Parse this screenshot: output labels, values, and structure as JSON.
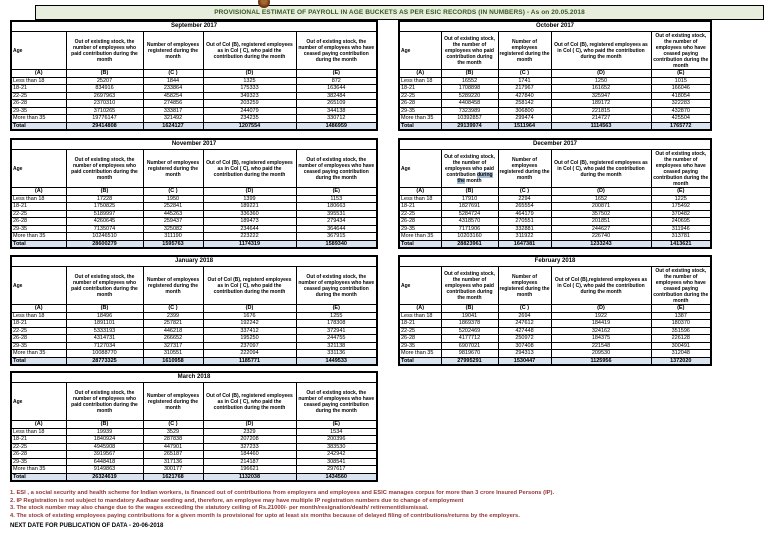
{
  "title": "PROVISIONAL ESTIMATE OF PAYROLL IN AGE BUCKETS AS PER ESIC RECORDS (IN NUMBERS) - As on 20.05.2018",
  "colors": {
    "title_bg": "#e7eedd",
    "title_text": "#38571f",
    "total_row_bg": "#dae3f0",
    "footnote_text": "#943634",
    "highlight_bg": "#a8bfd8",
    "border": "#000000"
  },
  "column_letters": [
    "(A)",
    "(B)",
    "(C )",
    "(D)",
    "(E)"
  ],
  "tables": [
    {
      "month": "September 2017",
      "variant": "wide",
      "headers": [
        "Age",
        "Out of existing stock, the number of employees who paid contribution during the month",
        "Number of employees registered during the month",
        "Out of Col (B), registered employees as in Col ( C), who paid the contribution during the month",
        "Out of existing stock, the number of employees  who have ceased paying contribution during the month"
      ],
      "rows": [
        [
          "Less than 18",
          "25207",
          "1844",
          "1325",
          "872"
        ],
        [
          "18-21",
          "834916",
          "233864",
          "175333",
          "163644"
        ],
        [
          "22-25",
          "2697963",
          "458254",
          "349323",
          "382484"
        ],
        [
          "26-28",
          "2370310",
          "274856",
          "203259",
          "265109"
        ],
        [
          "29-35",
          "3710265",
          "333817",
          "244079",
          "344138"
        ],
        [
          "More than 35",
          "19776147",
          "321492",
          "234235",
          "330712"
        ],
        [
          "Total",
          "29414808",
          "1624127",
          "1207554",
          "1486959"
        ]
      ]
    },
    {
      "month": "October 2017",
      "variant": "narrow",
      "headers": [
        "Age",
        "Out of existing stock, the number of employees who paid contribution during the month",
        "Number of employees registered during the month",
        "Out of Col (B),  registered employees as in Col ( C), who paid the contribution during the month",
        "Out of existing stock, the number of employees  who have ceased paying contribution during the month"
      ],
      "rows": [
        [
          "Less than 18",
          "16552",
          "1741",
          "1250",
          "1015"
        ],
        [
          "18-21",
          "1708898",
          "217967",
          "161652",
          "166046"
        ],
        [
          "22-25",
          "5289220",
          "427840",
          "325947",
          "418054"
        ],
        [
          "26-28",
          "4408458",
          "258142",
          "189172",
          "322283"
        ],
        [
          "29-35",
          "7323989",
          "306800",
          "221815",
          "432870"
        ],
        [
          "More than 35",
          "10392857",
          "299474",
          "214727",
          "425504"
        ],
        [
          "Total",
          "29139974",
          "1511964",
          "1114563",
          "1765772"
        ]
      ]
    },
    {
      "month": "November 2017",
      "variant": "wide",
      "headers": [
        "Age",
        "Out of existing stock, the number of employees who paid contribution during the month",
        "Number of employees registered during the month",
        "Out of Col (B), registered employees as in Col ( C), who paid the contribution during the month",
        "Out of existing stock, the number of employees  who have ceased paying contribution during the month"
      ],
      "rows": [
        [
          "Less than 18",
          "17228",
          "1950",
          "1399",
          "1153"
        ],
        [
          "18-21",
          "1750825",
          "252841",
          "189221",
          "180663"
        ],
        [
          "22-25",
          "5189997",
          "445263",
          "336360",
          "395531"
        ],
        [
          "26-28",
          "4260645",
          "259437",
          "189473",
          "279434"
        ],
        [
          "29-35",
          "7135074",
          "325082",
          "234644",
          "364644"
        ],
        [
          "More than 35",
          "10246510",
          "311190",
          "223222",
          "367915"
        ],
        [
          "Total",
          "28600279",
          "1595763",
          "1174319",
          "1589340"
        ]
      ]
    },
    {
      "month": "December 2017",
      "variant": "narrow",
      "highlight": {
        "col": 1,
        "phrase": "during the"
      },
      "headers": [
        "Age",
        "Out of existing stock, the number of employees who paid contribution during the month",
        "Number of employees registered during the month",
        "Out of Col (B), registered employees as in Col ( C), who paid the contribution during the month",
        "Out of existing stock, the number of employees  who have ceased paying contribution during the month"
      ],
      "rows": [
        [
          "Less than 18",
          "17910",
          "2294",
          "1652",
          "1225"
        ],
        [
          "18-21",
          "1827691",
          "265554",
          "200871",
          "175492"
        ],
        [
          "22-25",
          "5284724",
          "464179",
          "357502",
          "370482"
        ],
        [
          "26-28",
          "4318570",
          "270551",
          "201851",
          "240695"
        ],
        [
          "29-35",
          "7171906",
          "332881",
          "244627",
          "311946"
        ],
        [
          "More than 35",
          "10203160",
          "311922",
          "226740",
          "313781"
        ],
        [
          "Total",
          "28823961",
          "1647381",
          "1233243",
          "1413621"
        ]
      ]
    },
    {
      "month": "January 2018",
      "variant": "wide",
      "headers": [
        "Age",
        "Out of existing stock, the number of employees who paid contribution during the month",
        "Number of employees registered during the month",
        "Out of Col (B), registerd employees as in Col ( C), who paid the contribution during the month",
        "Out of existing stock, the number of employees  who have ceased paying contribution during the month"
      ],
      "rows": [
        [
          "Less than 18",
          "18496",
          "2399",
          "1676",
          "1255"
        ],
        [
          "18-21",
          "1891101",
          "257821",
          "192242",
          "178308"
        ],
        [
          "22-25",
          "5333193",
          "446218",
          "337412",
          "372941"
        ],
        [
          "26-28",
          "4314731",
          "266652",
          "195250",
          "244755"
        ],
        [
          "29-35",
          "7127034",
          "327317",
          "237097",
          "321138"
        ],
        [
          "More than 35",
          "10088770",
          "310551",
          "222094",
          "331136"
        ],
        [
          "Total",
          "28773325",
          "1610958",
          "1185771",
          "1449533"
        ]
      ]
    },
    {
      "month": "February 2018",
      "variant": "narrow",
      "headers": [
        "Age",
        "Out of existing stock, the number of employees who paid contribution during the month",
        "Number of employees registered during the month",
        "Out of Col (B),registered employees as in Col ( C), who paid the contribution during the month",
        "Out of existing stock, the number of employees  who have ceased paying contribution during the month"
      ],
      "rows": [
        [
          "Less than 18",
          "19041",
          "2694",
          "1922",
          "1387"
        ],
        [
          "18-21",
          "1869378",
          "247612",
          "184419",
          "180370"
        ],
        [
          "22-25",
          "5202469",
          "427448",
          "324162",
          "351596"
        ],
        [
          "26-28",
          "4177712",
          "250972",
          "184375",
          "226128"
        ],
        [
          "29-35",
          "6907021",
          "307408",
          "221548",
          "300491"
        ],
        [
          "More than 35",
          "9819670",
          "294313",
          "209530",
          "312048"
        ],
        [
          "Total",
          "27995291",
          "1530447",
          "1125956",
          "1372020"
        ]
      ]
    },
    {
      "month": "March 2018",
      "variant": "wide",
      "headers": [
        "Age",
        "Out of existing stock, the number of employees who paid contribution during the month",
        "Number of employees registered during the month",
        "Out of Col (B), registered employees as in Col ( C), who paid the contribution during the month",
        "Out of existing stock, the number of employees  who have ceased paying contribution during the month"
      ],
      "rows": [
        [
          "Less than 18",
          "19939",
          "3529",
          "2329",
          "1534"
        ],
        [
          "18-21",
          "1840924",
          "287838",
          "207208",
          "200396"
        ],
        [
          "22-25",
          "4945908",
          "447901",
          "327233",
          "383530"
        ],
        [
          "26-28",
          "3919567",
          "265187",
          "184460",
          "242942"
        ],
        [
          "29-35",
          "6448418",
          "317136",
          "214187",
          "308541"
        ],
        [
          "More than 35",
          "9149863",
          "300177",
          "196621",
          "297617"
        ],
        [
          "Total",
          "26324619",
          "1621768",
          "1132038",
          "1434560"
        ]
      ]
    }
  ],
  "footnotes": [
    {
      "text": "1. ESI , a social security and health scheme for Indian workers, is financed out of contributions from employers and employees and ESIC manages corpus for more than 3 crore Insured Persons (IP).",
      "color": "#943634"
    },
    {
      "text": "2. IP Registration is not subject to mandatory Aadhaar seeding and, therefore, an employee may have multiple IP registration numbers due to change of employment",
      "color": "#943634"
    },
    {
      "text": "3. The stock number may also change due to the wages exceeding the statutory ceiling of Rs.21000/- per month/resignation/death/ retirement/dismissal.",
      "color": "#943634"
    },
    {
      "text": "4. The stock of existing employees paying contributions for a given month is provisional for upto at least six months because of delayed filing of contributions/returns by the employers.",
      "color": "#943634"
    }
  ],
  "next_date": "NEXT DATE FOR PUBLICATION OF DATA - 20-06-2018"
}
